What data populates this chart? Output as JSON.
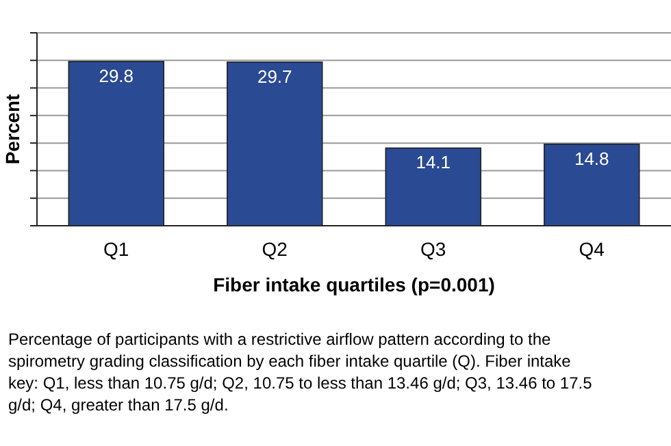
{
  "chart_data": {
    "type": "bar",
    "xlabel": "Fiber intake quartiles (p=0.001)",
    "ylabel": "Percent",
    "categories": [
      "Q1",
      "Q2",
      "Q3",
      "Q4"
    ],
    "values": [
      29.8,
      29.7,
      14.1,
      14.8
    ],
    "color": "#2a4a94",
    "ylim": [
      0,
      35
    ],
    "yticks": [
      {
        "value": 0,
        "label": null
      },
      {
        "value": 5,
        "label": null
      },
      {
        "value": 10,
        "label": null
      },
      {
        "value": 15,
        "label": null
      },
      {
        "value": 20,
        "label": null
      },
      {
        "value": 25,
        "label": null
      },
      {
        "value": 30,
        "label": null
      },
      {
        "value": 35,
        "label": null
      }
    ],
    "grid": "y",
    "data_labels": true,
    "annotations": [
      "Percentage of participants with a restrictive airflow pattern according to the spirometry grading classification by each fiber intake quartile (Q). Fiber intake key: Q1, less than 10.75 g/d; Q2, 10.75 to less than 13.46 g/d; Q3, 13.46 to 17.5 g/d; Q4, greater than 17.5 g/d."
    ]
  }
}
